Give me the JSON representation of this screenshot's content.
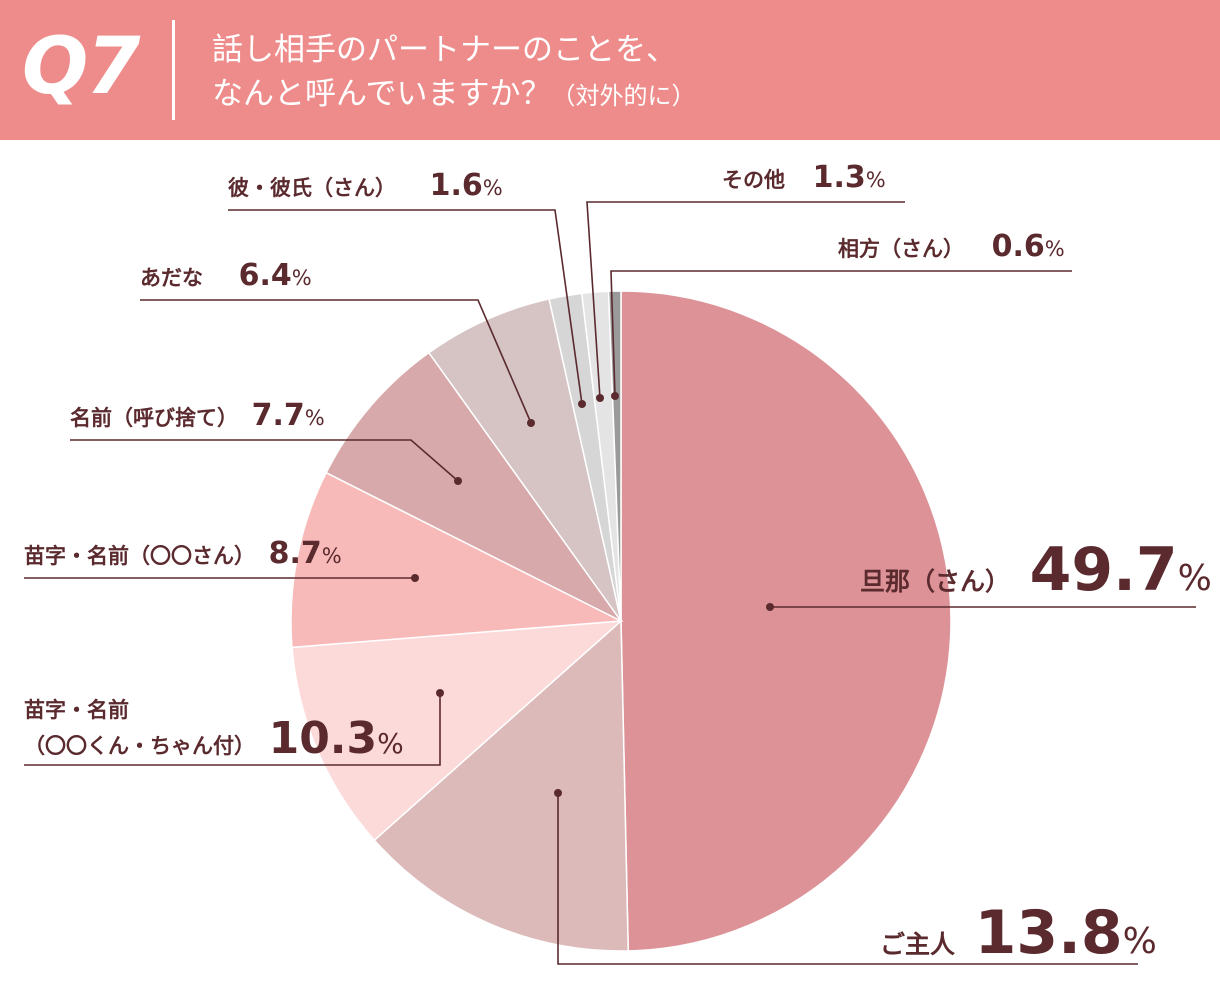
{
  "header": {
    "question_number": "Q7",
    "title_line1": "話し相手のパートナーのことを、",
    "title_line2": "なんと呼んでいますか？",
    "title_note": "（対外的に）"
  },
  "chart_data": {
    "type": "pie",
    "unit": "%",
    "start": "12 o'clock, clockwise",
    "slices": [
      {
        "label": "旦那（さん）",
        "value": 49.7,
        "value_text": "49.7",
        "color": "#dc9296"
      },
      {
        "label": "ご主人",
        "value": 13.8,
        "value_text": "13.8",
        "color": "#dcbaba"
      },
      {
        "label": "苗字・名前（〇〇くん・ちゃん付）",
        "value": 10.3,
        "value_text": "10.3",
        "color": "#fcdada"
      },
      {
        "label": "苗字・名前（〇〇さん）",
        "value": 8.7,
        "value_text": "8.7",
        "color": "#f8b9b9"
      },
      {
        "label": "名前（呼び捨て）",
        "value": 7.7,
        "value_text": "7.7",
        "color": "#d7a9aa"
      },
      {
        "label": "あだな",
        "value": 6.4,
        "value_text": "6.4",
        "color": "#d6c4c5"
      },
      {
        "label": "彼・彼氏（さん）",
        "value": 1.6,
        "value_text": "1.6",
        "color": "#d6d6d6"
      },
      {
        "label": "その他",
        "value": 1.3,
        "value_text": "1.3",
        "color": "#e4e4e4"
      },
      {
        "label": "相方（さん）",
        "value": 0.6,
        "value_text": "0.6",
        "color": "#9a9a9a"
      }
    ]
  },
  "labels": {
    "danna": "旦那（さん）",
    "goshujin": "ご主人",
    "myoji_kun_line1": "苗字・名前",
    "myoji_kun_line2": "（〇〇くん・ちゃん付）",
    "myoji_san": "苗字・名前（〇〇さん）",
    "yobisute": "名前（呼び捨て）",
    "adana": "あだな",
    "kare": "彼・彼氏（さん）",
    "sonota": "その他",
    "aikata": "相方（さん）",
    "pct_sign": "%"
  },
  "colors": {
    "header_bg": "#ee8c8b",
    "label_text": "#5a2a2e",
    "leader_line": "#5a2a2e"
  }
}
